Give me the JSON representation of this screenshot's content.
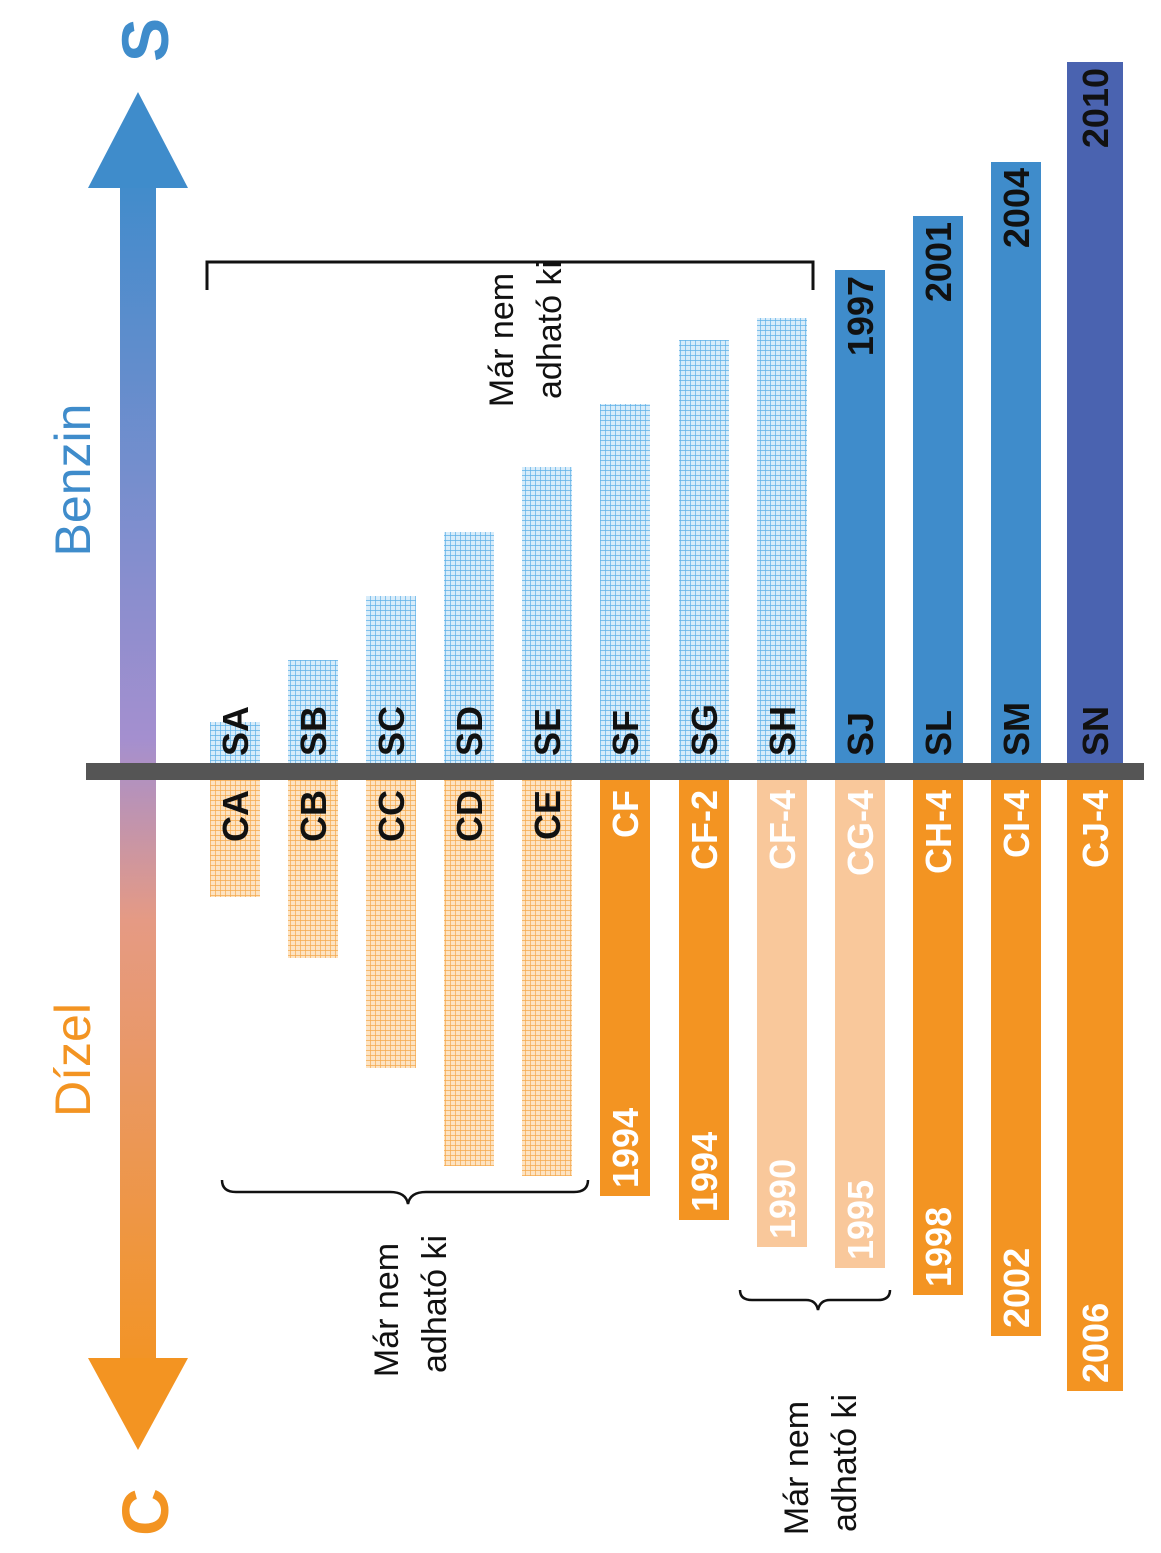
{
  "axis": {
    "top_letter": "S",
    "bottom_letter": "C",
    "gasoline_label": "Benzin",
    "diesel_label": "Dízel",
    "top_color": "#3f8ccb",
    "bottom_color": "#f39422"
  },
  "colors": {
    "gasoline_obsolete": "#8cc8ee",
    "gasoline_current": "#3f8ccb",
    "gasoline_latest": "#4a63b0",
    "diesel_obsolete": "#f8b865",
    "diesel_current": "#f39422",
    "diesel_pale": "#f9c89b",
    "divider": "#555555"
  },
  "notes": {
    "gasoline_obsolete": [
      "Már nem",
      "adható ki"
    ],
    "diesel_obsolete": [
      "Már nem",
      "adható ki"
    ],
    "diesel_obsolete_2": [
      "Már nem",
      "adható ki"
    ]
  },
  "gasoline": [
    {
      "code": "SA",
      "year": "",
      "status": "obsolete"
    },
    {
      "code": "SB",
      "year": "",
      "status": "obsolete"
    },
    {
      "code": "SC",
      "year": "",
      "status": "obsolete"
    },
    {
      "code": "SD",
      "year": "",
      "status": "obsolete"
    },
    {
      "code": "SE",
      "year": "",
      "status": "obsolete"
    },
    {
      "code": "SF",
      "year": "",
      "status": "obsolete"
    },
    {
      "code": "SG",
      "year": "",
      "status": "obsolete"
    },
    {
      "code": "SH",
      "year": "",
      "status": "obsolete"
    },
    {
      "code": "SJ",
      "year": "1997",
      "status": "current"
    },
    {
      "code": "SL",
      "year": "2001",
      "status": "current"
    },
    {
      "code": "SM",
      "year": "2004",
      "status": "current"
    },
    {
      "code": "SN",
      "year": "2010",
      "status": "latest"
    }
  ],
  "diesel": [
    {
      "code": "CA",
      "year": "",
      "status": "obsolete"
    },
    {
      "code": "CB",
      "year": "",
      "status": "obsolete"
    },
    {
      "code": "CC",
      "year": "",
      "status": "obsolete"
    },
    {
      "code": "CD",
      "year": "",
      "status": "obsolete"
    },
    {
      "code": "CE",
      "year": "",
      "status": "obsolete"
    },
    {
      "code": "CF",
      "year": "1994",
      "status": "current"
    },
    {
      "code": "CF-2",
      "year": "1994",
      "status": "current"
    },
    {
      "code": "CF-4",
      "year": "1990",
      "status": "pale"
    },
    {
      "code": "CG-4",
      "year": "1995",
      "status": "pale"
    },
    {
      "code": "CH-4",
      "year": "1998",
      "status": "current"
    },
    {
      "code": "CI-4",
      "year": "2002",
      "status": "current"
    },
    {
      "code": "CJ-4",
      "year": "2006",
      "status": "current"
    }
  ]
}
